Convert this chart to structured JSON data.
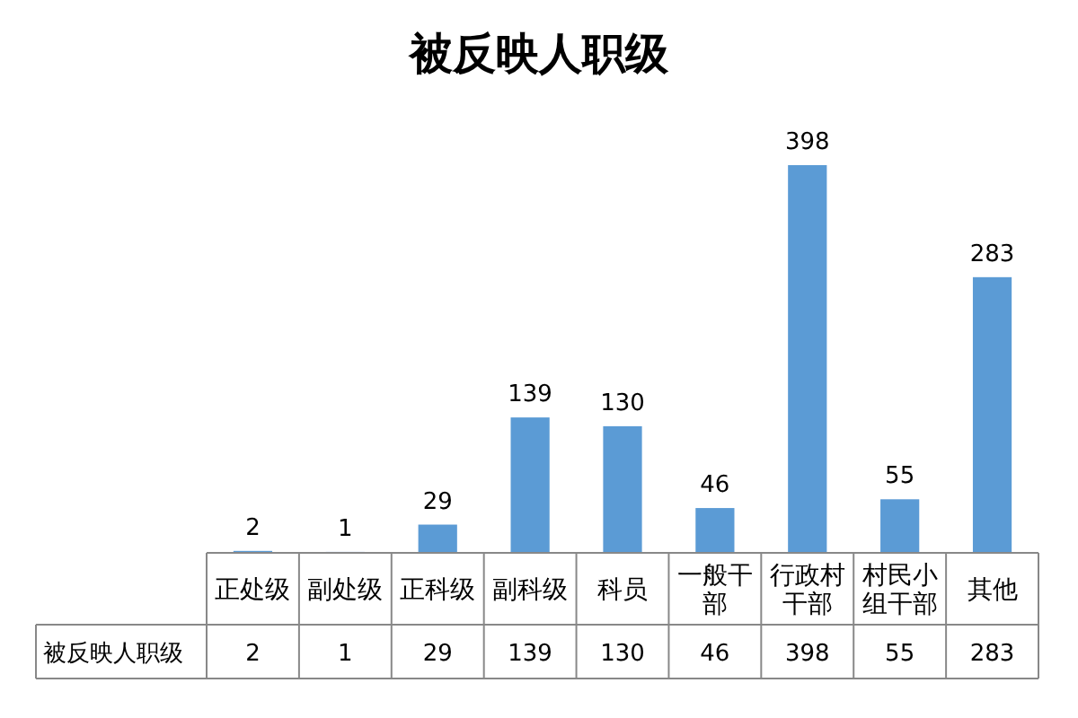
{
  "chart_data": {
    "type": "bar",
    "title": "被反映人职级",
    "categories": [
      "正处级",
      "副处级",
      "正科级",
      "副科级",
      "科员",
      "一般干部",
      "行政村干部",
      "村民小组干部",
      "其他"
    ],
    "series": [
      {
        "name": "被反映人职级",
        "color": "#5b9bd5",
        "values": [
          2,
          1,
          29,
          139,
          130,
          46,
          398,
          55,
          283
        ],
        "value_labels": [
          "2",
          "1",
          "29",
          "139",
          "130",
          "46",
          "398",
          "55",
          "283"
        ]
      }
    ],
    "data_labels": true
  }
}
